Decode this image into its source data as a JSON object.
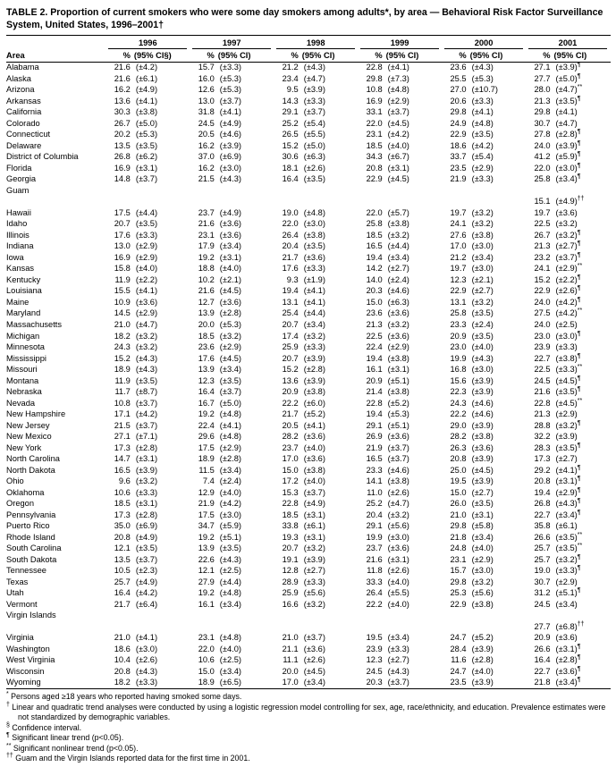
{
  "title": "TABLE 2.  Proportion of current smokers who were some day smokers among adults*, by area — Behavioral Risk Factor Surveillance System, United States, 1996–2001†",
  "table": {
    "area_header": "Area",
    "pct_header": "%",
    "year_headers": [
      "1996",
      "1997",
      "1998",
      "1999",
      "2000",
      "2001"
    ],
    "ci_headers": [
      "(95% CI§)",
      "(95% CI)",
      "(95% CI)",
      "(95% CI)",
      "(95% CI)",
      "(95% CI)"
    ],
    "rows": [
      {
        "area": "Alabama",
        "cells": [
          "21.6",
          "(±4.2)",
          "15.7",
          "(±3.3)",
          "21.2",
          "(±4.3)",
          "22.8",
          "(±4.1)",
          "23.6",
          "(±4.3)",
          "27.1",
          "(±3.9)¶"
        ]
      },
      {
        "area": "Alaska",
        "cells": [
          "21.6",
          "(±6.1)",
          "16.0",
          "(±5.3)",
          "23.4",
          "(±4.7)",
          "29.8",
          "(±7.3)",
          "25.5",
          "(±5.3)",
          "27.7",
          "(±5.0)¶"
        ]
      },
      {
        "area": "Arizona",
        "cells": [
          "16.2",
          "(±4.9)",
          "12.6",
          "(±5.3)",
          "9.5",
          "(±3.9)",
          "10.8",
          "(±4.8)",
          "27.0",
          "(±10.7)",
          "28.0",
          "(±4.7)**"
        ]
      },
      {
        "area": "Arkansas",
        "cells": [
          "13.6",
          "(±4.1)",
          "13.0",
          "(±3.7)",
          "14.3",
          "(±3.3)",
          "16.9",
          "(±2.9)",
          "20.6",
          "(±3.3)",
          "21.3",
          "(±3.5)¶"
        ]
      },
      {
        "area": "California",
        "cells": [
          "30.3",
          "(±3.8)",
          "31.8",
          "(±4.1)",
          "29.1",
          "(±3.7)",
          "33.1",
          "(±3.7)",
          "29.8",
          "(±4.1)",
          "29.8",
          "(±4.1)"
        ]
      },
      {
        "area": "Colorado",
        "cells": [
          "26.7",
          "(±5.0)",
          "24.5",
          "(±4.9)",
          "25.2",
          "(±5.4)",
          "22.0",
          "(±4.5)",
          "24.9",
          "(±4.8)",
          "30.7",
          "(±4.7)"
        ]
      },
      {
        "area": "Connecticut",
        "cells": [
          "20.2",
          "(±5.3)",
          "20.5",
          "(±4.6)",
          "26.5",
          "(±5.5)",
          "23.1",
          "(±4.2)",
          "22.9",
          "(±3.5)",
          "27.8",
          "(±2.8)¶"
        ]
      },
      {
        "area": "Delaware",
        "cells": [
          "13.5",
          "(±3.5)",
          "16.2",
          "(±3.9)",
          "15.2",
          "(±5.0)",
          "18.5",
          "(±4.0)",
          "18.6",
          "(±4.2)",
          "24.0",
          "(±3.9)¶"
        ]
      },
      {
        "area": "District of Columbia",
        "cells": [
          "26.8",
          "(±6.2)",
          "37.0",
          "(±6.9)",
          "30.6",
          "(±6.3)",
          "34.3",
          "(±6.7)",
          "33.7",
          "(±5.4)",
          "41.2",
          "(±5.9)¶"
        ]
      },
      {
        "area": "Florida",
        "cells": [
          "16.9",
          "(±3.1)",
          "16.2",
          "(±3.0)",
          "18.1",
          "(±2.6)",
          "20.8",
          "(±3.1)",
          "23.5",
          "(±2.9)",
          "22.0",
          "(±3.0)¶"
        ]
      },
      {
        "area": "Georgia",
        "cells": [
          "14.8",
          "(±3.7)",
          "21.5",
          "(±4.3)",
          "16.4",
          "(±3.5)",
          "22.9",
          "(±4.5)",
          "21.9",
          "(±3.3)",
          "25.8",
          "(±3.4)¶"
        ]
      },
      {
        "area": "Guam",
        "cells": [
          "",
          "",
          "",
          "",
          "",
          "",
          "",
          "",
          "",
          "",
          "",
          ""
        ]
      },
      {
        "area": "",
        "cells": [
          "",
          "",
          "",
          "",
          "",
          "",
          "",
          "",
          "",
          "",
          "15.1",
          "(±4.9)††"
        ]
      },
      {
        "area": "Hawaii",
        "cells": [
          "17.5",
          "(±4.4)",
          "23.7",
          "(±4.9)",
          "19.0",
          "(±4.8)",
          "22.0",
          "(±5.7)",
          "19.7",
          "(±3.2)",
          "19.7",
          "(±3.6)"
        ]
      },
      {
        "area": "Idaho",
        "cells": [
          "20.7",
          "(±3.5)",
          "21.6",
          "(±3.6)",
          "22.0",
          "(±3.0)",
          "25.8",
          "(±3.8)",
          "24.1",
          "(±3.2)",
          "22.5",
          "(±3.2)"
        ]
      },
      {
        "area": "Illinois",
        "cells": [
          "17.6",
          "(±3.3)",
          "23.1",
          "(±3.6)",
          "26.4",
          "(±3.8)",
          "18.5",
          "(±3.2)",
          "27.6",
          "(±3.8)",
          "26.7",
          "(±3.2)¶"
        ]
      },
      {
        "area": "Indiana",
        "cells": [
          "13.0",
          "(±2.9)",
          "17.9",
          "(±3.4)",
          "20.4",
          "(±3.5)",
          "16.5",
          "(±4.4)",
          "17.0",
          "(±3.0)",
          "21.3",
          "(±2.7)¶"
        ]
      },
      {
        "area": "Iowa",
        "cells": [
          "16.9",
          "(±2.9)",
          "19.2",
          "(±3.1)",
          "21.7",
          "(±3.6)",
          "19.4",
          "(±3.4)",
          "21.2",
          "(±3.4)",
          "23.2",
          "(±3.7)¶"
        ]
      },
      {
        "area": "Kansas",
        "cells": [
          "15.8",
          "(±4.0)",
          "18.8",
          "(±4.0)",
          "17.6",
          "(±3.3)",
          "14.2",
          "(±2.7)",
          "19.7",
          "(±3.0)",
          "24.1",
          "(±2.9)**"
        ]
      },
      {
        "area": "Kentucky",
        "cells": [
          "11.9",
          "(±2.2)",
          "10.2",
          "(±2.1)",
          "9.3",
          "(±1.9)",
          "14.0",
          "(±2.4)",
          "12.3",
          "(±2.1)",
          "15.2",
          "(±2.2)¶"
        ]
      },
      {
        "area": "Louisiana",
        "cells": [
          "15.5",
          "(±4.1)",
          "21.6",
          "(±4.5)",
          "19.4",
          "(±4.1)",
          "20.3",
          "(±4.6)",
          "22.9",
          "(±2.7)",
          "22.9",
          "(±2.6)¶"
        ]
      },
      {
        "area": "Maine",
        "cells": [
          "10.9",
          "(±3.6)",
          "12.7",
          "(±3.6)",
          "13.1",
          "(±4.1)",
          "15.0",
          "(±6.3)",
          "13.1",
          "(±3.2)",
          "24.0",
          "(±4.2)¶"
        ]
      },
      {
        "area": "Maryland",
        "cells": [
          "14.5",
          "(±2.9)",
          "13.9",
          "(±2.8)",
          "25.4",
          "(±4.4)",
          "23.6",
          "(±3.6)",
          "25.8",
          "(±3.5)",
          "27.5",
          "(±4.2)**"
        ]
      },
      {
        "area": "Massachusetts",
        "cells": [
          "21.0",
          "(±4.7)",
          "20.0",
          "(±5.3)",
          "20.7",
          "(±3.4)",
          "21.3",
          "(±3.2)",
          "23.3",
          "(±2.4)",
          "24.0",
          "(±2.5)"
        ]
      },
      {
        "area": "Michigan",
        "cells": [
          "18.2",
          "(±3.2)",
          "18.5",
          "(±3.2)",
          "17.4",
          "(±3.2)",
          "22.5",
          "(±3.6)",
          "20.9",
          "(±3.5)",
          "23.0",
          "(±3.0)¶"
        ]
      },
      {
        "area": "Minnesota",
        "cells": [
          "24.3",
          "(±3.2)",
          "23.6",
          "(±2.9)",
          "25.9",
          "(±3.3)",
          "22.4",
          "(±2.9)",
          "23.0",
          "(±4.0)",
          "23.9",
          "(±3.3)"
        ]
      },
      {
        "area": "Mississippi",
        "cells": [
          "15.2",
          "(±4.3)",
          "17.6",
          "(±4.5)",
          "20.7",
          "(±3.9)",
          "19.4",
          "(±3.8)",
          "19.9",
          "(±4.3)",
          "22.7",
          "(±3.8)¶"
        ]
      },
      {
        "area": "Missouri",
        "cells": [
          "18.9",
          "(±4.3)",
          "13.9",
          "(±3.4)",
          "15.2",
          "(±2.8)",
          "16.1",
          "(±3.1)",
          "16.8",
          "(±3.0)",
          "22.5",
          "(±3.3)**"
        ]
      },
      {
        "area": "Montana",
        "cells": [
          "11.9",
          "(±3.5)",
          "12.3",
          "(±3.5)",
          "13.6",
          "(±3.9)",
          "20.9",
          "(±5.1)",
          "15.6",
          "(±3.9)",
          "24.5",
          "(±4.5)¶"
        ]
      },
      {
        "area": "Nebraska",
        "cells": [
          "11.7",
          "(±8.7)",
          "16.4",
          "(±3.7)",
          "20.9",
          "(±3.8)",
          "21.4",
          "(±3.8)",
          "22.3",
          "(±3.9)",
          "21.6",
          "(±3.5)¶"
        ]
      },
      {
        "area": "Nevada",
        "cells": [
          "10.8",
          "(±3.7)",
          "16.7",
          "(±5.0)",
          "22.2",
          "(±6.0)",
          "22.8",
          "(±5.2)",
          "24.3",
          "(±4.6)",
          "22.8",
          "(±4.5)**"
        ]
      },
      {
        "area": "New Hampshire",
        "cells": [
          "17.1",
          "(±4.2)",
          "19.2",
          "(±4.8)",
          "21.7",
          "(±5.2)",
          "19.4",
          "(±5.3)",
          "22.2",
          "(±4.6)",
          "21.3",
          "(±2.9)"
        ]
      },
      {
        "area": "New Jersey",
        "cells": [
          "21.5",
          "(±3.7)",
          "22.4",
          "(±4.1)",
          "20.5",
          "(±4.1)",
          "29.1",
          "(±5.1)",
          "29.0",
          "(±3.9)",
          "28.8",
          "(±3.2)¶"
        ]
      },
      {
        "area": "New Mexico",
        "cells": [
          "27.1",
          "(±7.1)",
          "29.6",
          "(±4.8)",
          "28.2",
          "(±3.6)",
          "26.9",
          "(±3.6)",
          "28.2",
          "(±3.8)",
          "32.2",
          "(±3.9)"
        ]
      },
      {
        "area": "New York",
        "cells": [
          "17.3",
          "(±2.8)",
          "17.5",
          "(±2.9)",
          "23.7",
          "(±4.0)",
          "21.9",
          "(±3.7)",
          "26.3",
          "(±3.6)",
          "28.3",
          "(±3.5)¶"
        ]
      },
      {
        "area": "North Carolina",
        "cells": [
          "14.7",
          "(±3.1)",
          "18.9",
          "(±2.8)",
          "17.0",
          "(±3.6)",
          "16.5",
          "(±3.7)",
          "20.8",
          "(±3.9)",
          "17.3",
          "(±2.7)"
        ]
      },
      {
        "area": "North Dakota",
        "cells": [
          "16.5",
          "(±3.9)",
          "11.5",
          "(±3.4)",
          "15.0",
          "(±3.8)",
          "23.3",
          "(±4.6)",
          "25.0",
          "(±4.5)",
          "29.2",
          "(±4.1)¶"
        ]
      },
      {
        "area": "Ohio",
        "cells": [
          "9.6",
          "(±3.2)",
          "7.4",
          "(±2.4)",
          "17.2",
          "(±4.0)",
          "14.1",
          "(±3.8)",
          "19.5",
          "(±3.9)",
          "20.8",
          "(±3.1)¶"
        ]
      },
      {
        "area": "Oklahoma",
        "cells": [
          "10.6",
          "(±3.3)",
          "12.9",
          "(±4.0)",
          "15.3",
          "(±3.7)",
          "11.0",
          "(±2.6)",
          "15.0",
          "(±2.7)",
          "19.4",
          "(±2.9)¶"
        ]
      },
      {
        "area": "Oregon",
        "cells": [
          "18.5",
          "(±3.1)",
          "21.9",
          "(±4.2)",
          "22.8",
          "(±4.9)",
          "25.2",
          "(±4.7)",
          "26.0",
          "(±3.5)",
          "26.8",
          "(±4.3)¶"
        ]
      },
      {
        "area": "Pennsylvania",
        "cells": [
          "17.3",
          "(±2.8)",
          "17.5",
          "(±3.0)",
          "18.5",
          "(±3.1)",
          "20.4",
          "(±3.2)",
          "21.0",
          "(±3.1)",
          "22.7",
          "(±3.4)¶"
        ]
      },
      {
        "area": "Puerto Rico",
        "cells": [
          "35.0",
          "(±6.9)",
          "34.7",
          "(±5.9)",
          "33.8",
          "(±6.1)",
          "29.1",
          "(±5.6)",
          "29.8",
          "(±5.8)",
          "35.8",
          "(±6.1)"
        ]
      },
      {
        "area": "Rhode Island",
        "cells": [
          "20.8",
          "(±4.9)",
          "19.2",
          "(±5.1)",
          "19.3",
          "(±3.1)",
          "19.9",
          "(±3.0)",
          "21.8",
          "(±3.4)",
          "26.6",
          "(±3.5)**"
        ]
      },
      {
        "area": "South Carolina",
        "cells": [
          "12.1",
          "(±3.5)",
          "13.9",
          "(±3.5)",
          "20.7",
          "(±3.2)",
          "23.7",
          "(±3.6)",
          "24.8",
          "(±4.0)",
          "25.7",
          "(±3.5)**"
        ]
      },
      {
        "area": "South Dakota",
        "cells": [
          "13.5",
          "(±3.7)",
          "22.6",
          "(±4.3)",
          "19.1",
          "(±3.9)",
          "21.6",
          "(±3.1)",
          "23.1",
          "(±2.9)",
          "25.7",
          "(±3.2)¶"
        ]
      },
      {
        "area": "Tennessee",
        "cells": [
          "10.5",
          "(±2.3)",
          "12.1",
          "(±2.5)",
          "12.8",
          "(±2.7)",
          "11.8",
          "(±2.6)",
          "15.7",
          "(±3.0)",
          "19.0",
          "(±3.3)¶"
        ]
      },
      {
        "area": "Texas",
        "cells": [
          "25.7",
          "(±4.9)",
          "27.9",
          "(±4.4)",
          "28.9",
          "(±3.3)",
          "33.3",
          "(±4.0)",
          "29.8",
          "(±3.2)",
          "30.7",
          "(±2.9)"
        ]
      },
      {
        "area": "Utah",
        "cells": [
          "16.4",
          "(±4.2)",
          "19.2",
          "(±4.8)",
          "25.9",
          "(±5.6)",
          "26.4",
          "(±5.5)",
          "25.3",
          "(±5.6)",
          "31.2",
          "(±5.1)¶"
        ]
      },
      {
        "area": "Vermont",
        "cells": [
          "21.7",
          "(±6.4)",
          "16.1",
          "(±3.4)",
          "16.6",
          "(±3.2)",
          "22.2",
          "(±4.0)",
          "22.9",
          "(±3.8)",
          "24.5",
          "(±3.4)"
        ]
      },
      {
        "area": "Virgin Islands",
        "cells": [
          "",
          "",
          "",
          "",
          "",
          "",
          "",
          "",
          "",
          "",
          "",
          ""
        ]
      },
      {
        "area": "",
        "cells": [
          "",
          "",
          "",
          "",
          "",
          "",
          "",
          "",
          "",
          "",
          "27.7",
          "(±6.8)††"
        ]
      },
      {
        "area": "Virginia",
        "cells": [
          "21.0",
          "(±4.1)",
          "23.1",
          "(±4.8)",
          "21.0",
          "(±3.7)",
          "19.5",
          "(±3.4)",
          "24.7",
          "(±5.2)",
          "20.9",
          "(±3.6)"
        ]
      },
      {
        "area": "Washington",
        "cells": [
          "18.6",
          "(±3.0)",
          "22.0",
          "(±4.0)",
          "21.1",
          "(±3.6)",
          "23.9",
          "(±3.3)",
          "28.4",
          "(±3.9)",
          "26.6",
          "(±3.1)¶"
        ]
      },
      {
        "area": "West Virginia",
        "cells": [
          "10.4",
          "(±2.6)",
          "10.6",
          "(±2.5)",
          "11.1",
          "(±2.6)",
          "12.3",
          "(±2.7)",
          "11.6",
          "(±2.8)",
          "16.4",
          "(±2.8)¶"
        ]
      },
      {
        "area": "Wisconsin",
        "cells": [
          "20.8",
          "(±4.3)",
          "15.0",
          "(±3.4)",
          "20.0",
          "(±4.5)",
          "24.5",
          "(±4.3)",
          "24.7",
          "(±4.0)",
          "22.7",
          "(±3.6)¶"
        ]
      },
      {
        "area": "Wyoming",
        "cells": [
          "18.2",
          "(±3.3)",
          "18.9",
          "(±6.5)",
          "17.0",
          "(±3.4)",
          "20.3",
          "(±3.7)",
          "23.5",
          "(±3.9)",
          "21.8",
          "(±3.4)¶"
        ]
      }
    ]
  },
  "footnotes": [
    {
      "sym": "*",
      "text": "Persons aged ≥18 years who reported having smoked some days."
    },
    {
      "sym": "†",
      "text": "Linear and quadratic trend analyses were conducted by using a logistic regression model controlling for sex, age, race/ethnicity, and education. Prevalence estimates were not standardized by demographic variables."
    },
    {
      "sym": "§",
      "text": "Confidence interval."
    },
    {
      "sym": "¶",
      "text": "Significant linear trend (p<0.05)."
    },
    {
      "sym": "**",
      "text": "Significant nonlinear trend (p<0.05)."
    },
    {
      "sym": "††",
      "text": "Guam and the Virgin Islands reported data for the first time in 2001."
    }
  ]
}
